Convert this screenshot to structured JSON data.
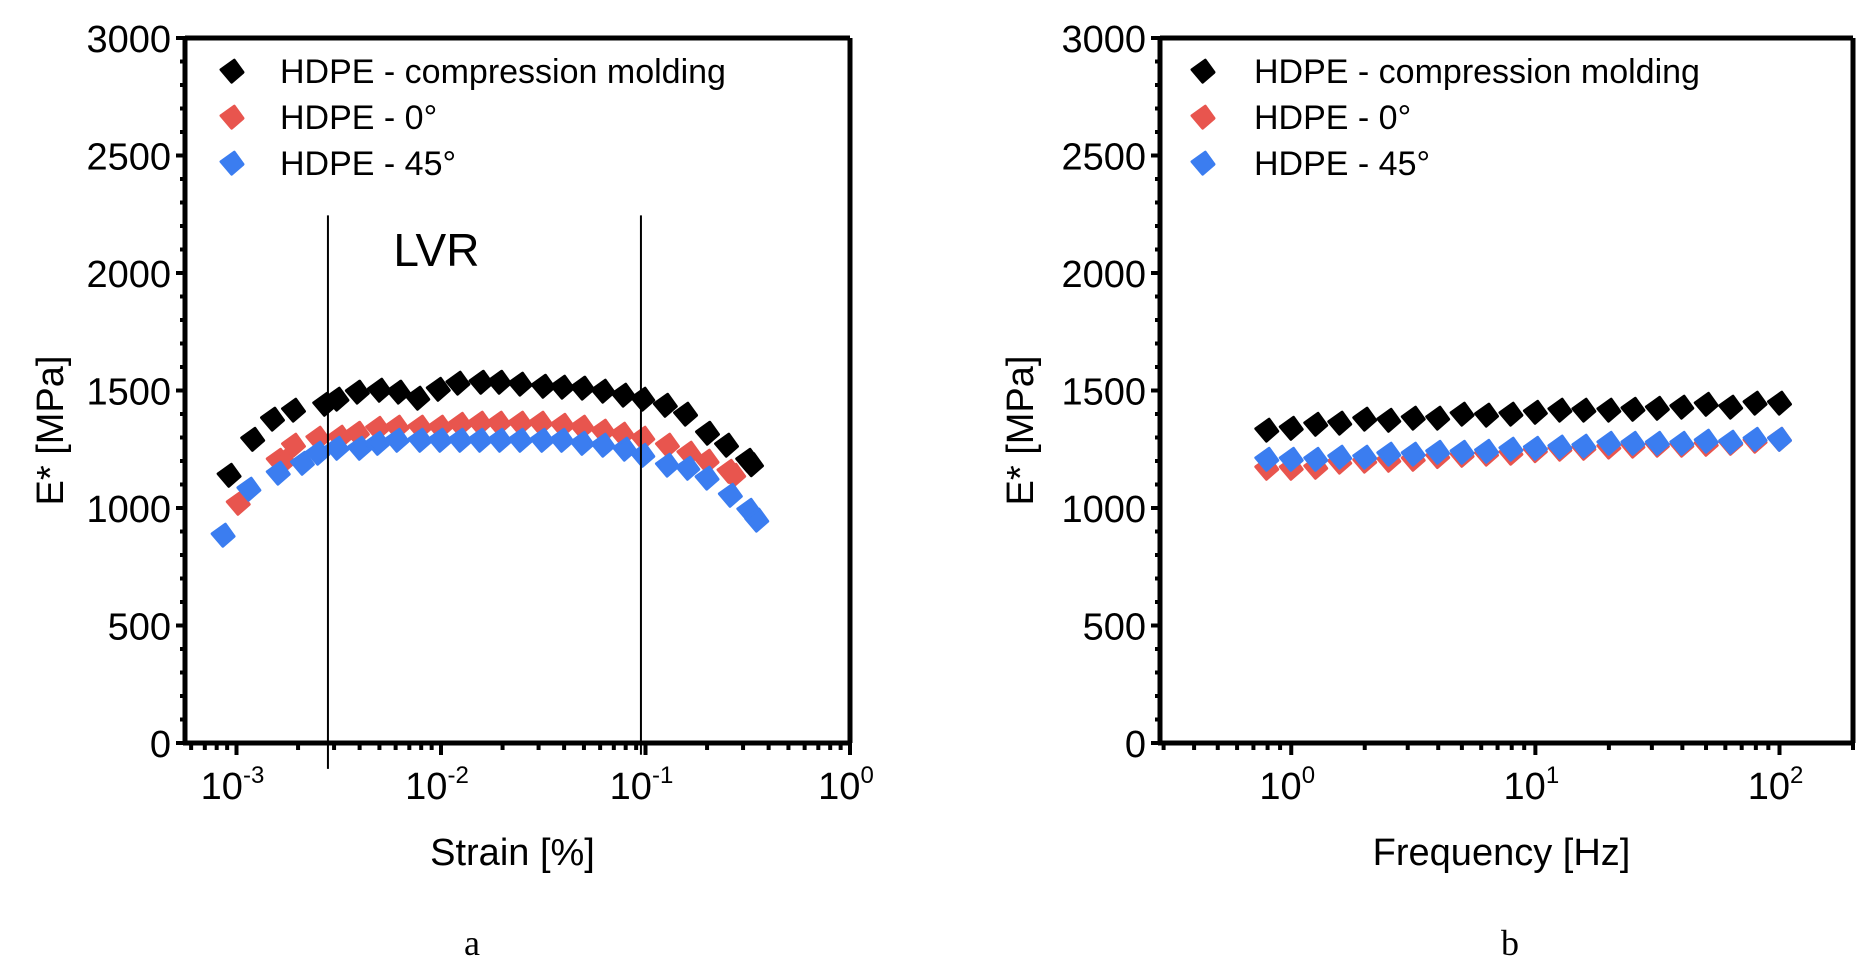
{
  "chart_data": [
    {
      "panel": "a",
      "type": "scatter",
      "caption": "a",
      "xlabel": "Strain [%]",
      "ylabel": "E* [MPa]",
      "xscale": "log",
      "xlim": [
        0.00056,
        1
      ],
      "ylim": [
        0,
        3000
      ],
      "xticks": [
        {
          "base": "10",
          "exp": "-3",
          "value": 0.001
        },
        {
          "base": "10",
          "exp": "-2",
          "value": 0.01
        },
        {
          "base": "10",
          "exp": "-1",
          "value": 0.1
        },
        {
          "base": "10",
          "exp": "0",
          "value": 1
        }
      ],
      "yticks": [
        "0",
        "500",
        "1000",
        "1500",
        "2000",
        "2500",
        "3000"
      ],
      "yticks_values": [
        0,
        500,
        1000,
        1500,
        2000,
        2500,
        3000
      ],
      "grid": false,
      "legend_position": "top-left",
      "annotations": [
        {
          "type": "text",
          "text": "LVR",
          "x": 0.0095,
          "y": 2030
        },
        {
          "type": "vline",
          "x": 0.0028,
          "y_from": -110,
          "y_to": 2245
        },
        {
          "type": "vline",
          "x": 0.095,
          "y_from": -50,
          "y_to": 2245
        }
      ],
      "series": [
        {
          "name": "HDPE - compression molding",
          "color": "#000000",
          "x": [
            0.00092,
            0.0012,
            0.0015,
            0.0019,
            0.0027,
            0.0031,
            0.0039,
            0.005,
            0.0062,
            0.0077,
            0.0097,
            0.0121,
            0.0157,
            0.0193,
            0.0244,
            0.0316,
            0.0392,
            0.0492,
            0.062,
            0.078,
            0.097,
            0.125,
            0.157,
            0.201,
            0.249,
            0.316,
            0.33
          ],
          "y": [
            1140,
            1293,
            1379,
            1417,
            1442,
            1464,
            1494,
            1502,
            1494,
            1468,
            1506,
            1532,
            1536,
            1536,
            1528,
            1519,
            1515,
            1511,
            1498,
            1481,
            1464,
            1438,
            1400,
            1319,
            1268,
            1204,
            1185
          ]
        },
        {
          "name": "HDPE - 0°",
          "color": "#E8554E",
          "x": [
            0.00102,
            0.0016,
            0.0017,
            0.0019,
            0.0025,
            0.0032,
            0.0039,
            0.0049,
            0.0061,
            0.0079,
            0.0099,
            0.0124,
            0.0155,
            0.0192,
            0.0244,
            0.0307,
            0.0393,
            0.049,
            0.062,
            0.077,
            0.097,
            0.128,
            0.163,
            0.2,
            0.256,
            0.27
          ],
          "y": [
            1021,
            1204,
            1200,
            1268,
            1298,
            1302,
            1319,
            1340,
            1345,
            1345,
            1345,
            1357,
            1362,
            1362,
            1362,
            1362,
            1353,
            1345,
            1328,
            1315,
            1298,
            1268,
            1234,
            1200,
            1157,
            1140
          ]
        },
        {
          "name": "HDPE - 45°",
          "color": "#3B7DF0",
          "x": [
            0.00086,
            0.00115,
            0.0016,
            0.0021,
            0.0025,
            0.0031,
            0.004,
            0.0049,
            0.0061,
            0.0079,
            0.0099,
            0.0124,
            0.0155,
            0.0194,
            0.0244,
            0.0312,
            0.039,
            0.049,
            0.062,
            0.079,
            0.097,
            0.128,
            0.161,
            0.2,
            0.26,
            0.32,
            0.35
          ],
          "y": [
            885,
            1081,
            1149,
            1191,
            1234,
            1255,
            1255,
            1276,
            1289,
            1289,
            1289,
            1289,
            1289,
            1289,
            1289,
            1289,
            1289,
            1276,
            1268,
            1251,
            1225,
            1183,
            1170,
            1128,
            1055,
            991,
            949
          ]
        }
      ]
    },
    {
      "panel": "b",
      "type": "scatter",
      "caption": "b",
      "xlabel": "Frequency [Hz]",
      "ylabel": "E* [MPa]",
      "xscale": "log",
      "xlim": [
        0.29,
        200
      ],
      "ylim": [
        0,
        3000
      ],
      "xticks": [
        {
          "base": "10",
          "exp": "0",
          "value": 1
        },
        {
          "base": "10",
          "exp": "1",
          "value": 10
        },
        {
          "base": "10",
          "exp": "2",
          "value": 100
        }
      ],
      "yticks": [
        "0",
        "500",
        "1000",
        "1500",
        "2000",
        "2500",
        "3000"
      ],
      "yticks_values": [
        0,
        500,
        1000,
        1500,
        2000,
        2500,
        3000
      ],
      "grid": false,
      "legend_position": "top-left",
      "annotations": [],
      "series": [
        {
          "name": "HDPE - compression molding",
          "color": "#000000",
          "x": [
            0.794,
            1,
            1.26,
            1.58,
            2,
            2.51,
            3.16,
            3.98,
            5.01,
            6.31,
            7.94,
            10,
            12.6,
            15.8,
            20,
            25.1,
            31.6,
            39.8,
            50.1,
            63.1,
            79.4,
            100
          ],
          "y": [
            1332,
            1340,
            1357,
            1362,
            1379,
            1374,
            1383,
            1383,
            1400,
            1396,
            1400,
            1408,
            1417,
            1417,
            1417,
            1421,
            1425,
            1430,
            1442,
            1430,
            1447,
            1447
          ]
        },
        {
          "name": "HDPE - 0°",
          "color": "#E8554E",
          "x": [
            0.794,
            1,
            1.26,
            1.58,
            2,
            2.51,
            3.16,
            3.98,
            5.01,
            6.31,
            7.94,
            10,
            12.6,
            15.8,
            20,
            25.1,
            31.6,
            39.8,
            50.1,
            63.1,
            79.4,
            100
          ],
          "y": [
            1170,
            1170,
            1174,
            1196,
            1200,
            1204,
            1208,
            1220,
            1225,
            1230,
            1234,
            1245,
            1251,
            1255,
            1260,
            1264,
            1268,
            1268,
            1272,
            1276,
            1285,
            1293
          ]
        },
        {
          "name": "HDPE - 45°",
          "color": "#3B7DF0",
          "x": [
            0.794,
            1,
            1.26,
            1.58,
            2,
            2.51,
            3.16,
            3.98,
            5.01,
            6.31,
            7.94,
            10,
            12.6,
            15.8,
            20,
            25.1,
            31.6,
            39.8,
            50.1,
            63.1,
            79.4,
            100
          ],
          "y": [
            1208,
            1208,
            1208,
            1217,
            1217,
            1230,
            1230,
            1238,
            1238,
            1242,
            1251,
            1255,
            1260,
            1264,
            1276,
            1276,
            1276,
            1276,
            1285,
            1281,
            1293,
            1293
          ]
        }
      ]
    }
  ]
}
